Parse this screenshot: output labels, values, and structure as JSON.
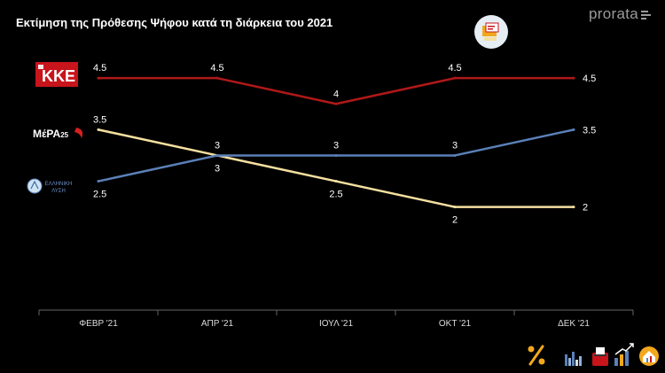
{
  "header": {
    "title": "Εκτίμηση της Πρόθεσης  Ψήφου κατά τη διάρκεια του 2021",
    "brand": "prorata"
  },
  "parties": {
    "kke": "ΚΚΕ",
    "mera_main": "ΜέΡΑ",
    "mera_sub": "25",
    "ellisi_line1": "ΕΛΛΗΝΙΚΗ",
    "ellisi_line2": "ΛΥΣΗ"
  },
  "colors": {
    "kke": "#b01818",
    "mera": "#f5e0a0",
    "ellisi": "#5b80b8",
    "axis": "#666666"
  },
  "chart_data": {
    "type": "line",
    "title": "Εκτίμηση της Πρόθεσης  Ψήφου κατά τη διάρκεια του 2021",
    "categories": [
      "ΦΕΒΡ '21",
      "ΑΠΡ '21",
      "ΙΟΥΛ '21",
      "ΟΚΤ '21",
      "ΔΕΚ '21"
    ],
    "series": [
      {
        "name": "ΚΚΕ",
        "color": "#b01818",
        "values": [
          4.5,
          4.5,
          4,
          4.5,
          4.5
        ]
      },
      {
        "name": "ΜέΡΑ25",
        "color": "#f5e0a0",
        "values": [
          3.5,
          3,
          2.5,
          2,
          2
        ]
      },
      {
        "name": "ΕΛΛΗΝΙΚΗ ΛΥΣΗ",
        "color": "#5b80b8",
        "values": [
          2.5,
          3,
          3,
          3,
          3.5
        ]
      }
    ],
    "ylim": [
      0,
      5.5
    ],
    "grid": false,
    "legend": "left (party logos)"
  }
}
